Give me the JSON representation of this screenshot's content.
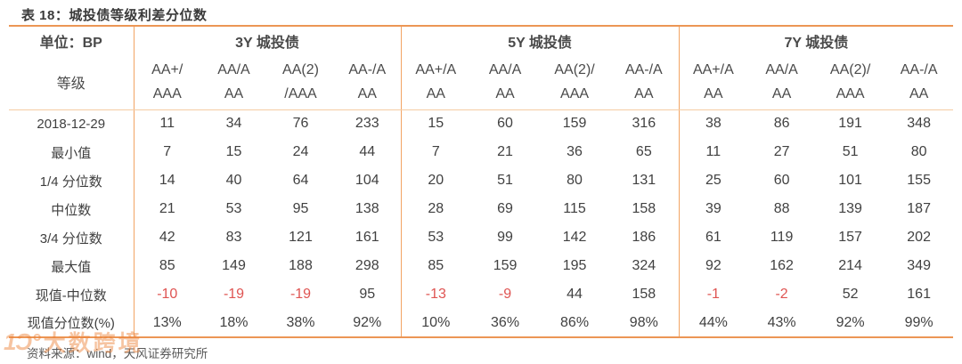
{
  "title": "表 18：城投债等级利差分位数",
  "footer": {
    "label": "资料来源：",
    "text": "wind，天风证券研究所"
  },
  "watermark": {
    "logo": "1Ͻ°",
    "text": "大数跨境"
  },
  "colors": {
    "border_strong": "#EC9655",
    "border_light": "#F5CBA3",
    "divider": "#F2A464",
    "negative_red": "#DF5452",
    "text": "#414141"
  },
  "table": {
    "unit_label": "单位：BP",
    "level_label": "等级",
    "groups": [
      {
        "label": "3Y 城投债",
        "columns": [
          {
            "line1": "AA+/",
            "line2": "AAA"
          },
          {
            "line1": "AA/A",
            "line2": "AA"
          },
          {
            "line1": "AA(2)",
            "line2": "/AAA"
          },
          {
            "line1": "AA-/A",
            "line2": "AA"
          }
        ]
      },
      {
        "label": "5Y 城投债",
        "columns": [
          {
            "line1": "AA+/A",
            "line2": "AA"
          },
          {
            "line1": "AA/A",
            "line2": "AA"
          },
          {
            "line1": "AA(2)/",
            "line2": "AAA"
          },
          {
            "line1": "AA-/A",
            "line2": "AA"
          }
        ]
      },
      {
        "label": "7Y 城投债",
        "columns": [
          {
            "line1": "AA+/A",
            "line2": "AA"
          },
          {
            "line1": "AA/A",
            "line2": "AA"
          },
          {
            "line1": "AA(2)/",
            "line2": "AAA"
          },
          {
            "line1": "AA-/A",
            "line2": "AA"
          }
        ]
      }
    ],
    "rows": [
      {
        "label": "2018-12-29",
        "values": [
          "11",
          "34",
          "76",
          "233",
          "15",
          "60",
          "159",
          "316",
          "38",
          "86",
          "191",
          "348"
        ]
      },
      {
        "label": "最小值",
        "values": [
          "7",
          "15",
          "24",
          "44",
          "7",
          "21",
          "36",
          "65",
          "11",
          "27",
          "51",
          "80"
        ]
      },
      {
        "label": "1/4 分位数",
        "values": [
          "14",
          "40",
          "64",
          "104",
          "20",
          "51",
          "80",
          "131",
          "25",
          "60",
          "101",
          "155"
        ]
      },
      {
        "label": "中位数",
        "values": [
          "21",
          "53",
          "95",
          "138",
          "28",
          "69",
          "115",
          "158",
          "39",
          "88",
          "139",
          "187"
        ]
      },
      {
        "label": "3/4 分位数",
        "values": [
          "42",
          "83",
          "121",
          "161",
          "53",
          "99",
          "142",
          "186",
          "61",
          "119",
          "157",
          "202"
        ]
      },
      {
        "label": "最大值",
        "values": [
          "85",
          "149",
          "188",
          "298",
          "85",
          "159",
          "195",
          "324",
          "92",
          "162",
          "214",
          "349"
        ]
      },
      {
        "label": "现值-中位数",
        "values": [
          "-10",
          "-19",
          "-19",
          "95",
          "-13",
          "-9",
          "44",
          "158",
          "-1",
          "-2",
          "52",
          "161"
        ]
      },
      {
        "label": "现值分位数(%)",
        "values": [
          "13%",
          "18%",
          "38%",
          "92%",
          "10%",
          "36%",
          "86%",
          "98%",
          "44%",
          "43%",
          "92%",
          "99%"
        ]
      }
    ]
  }
}
